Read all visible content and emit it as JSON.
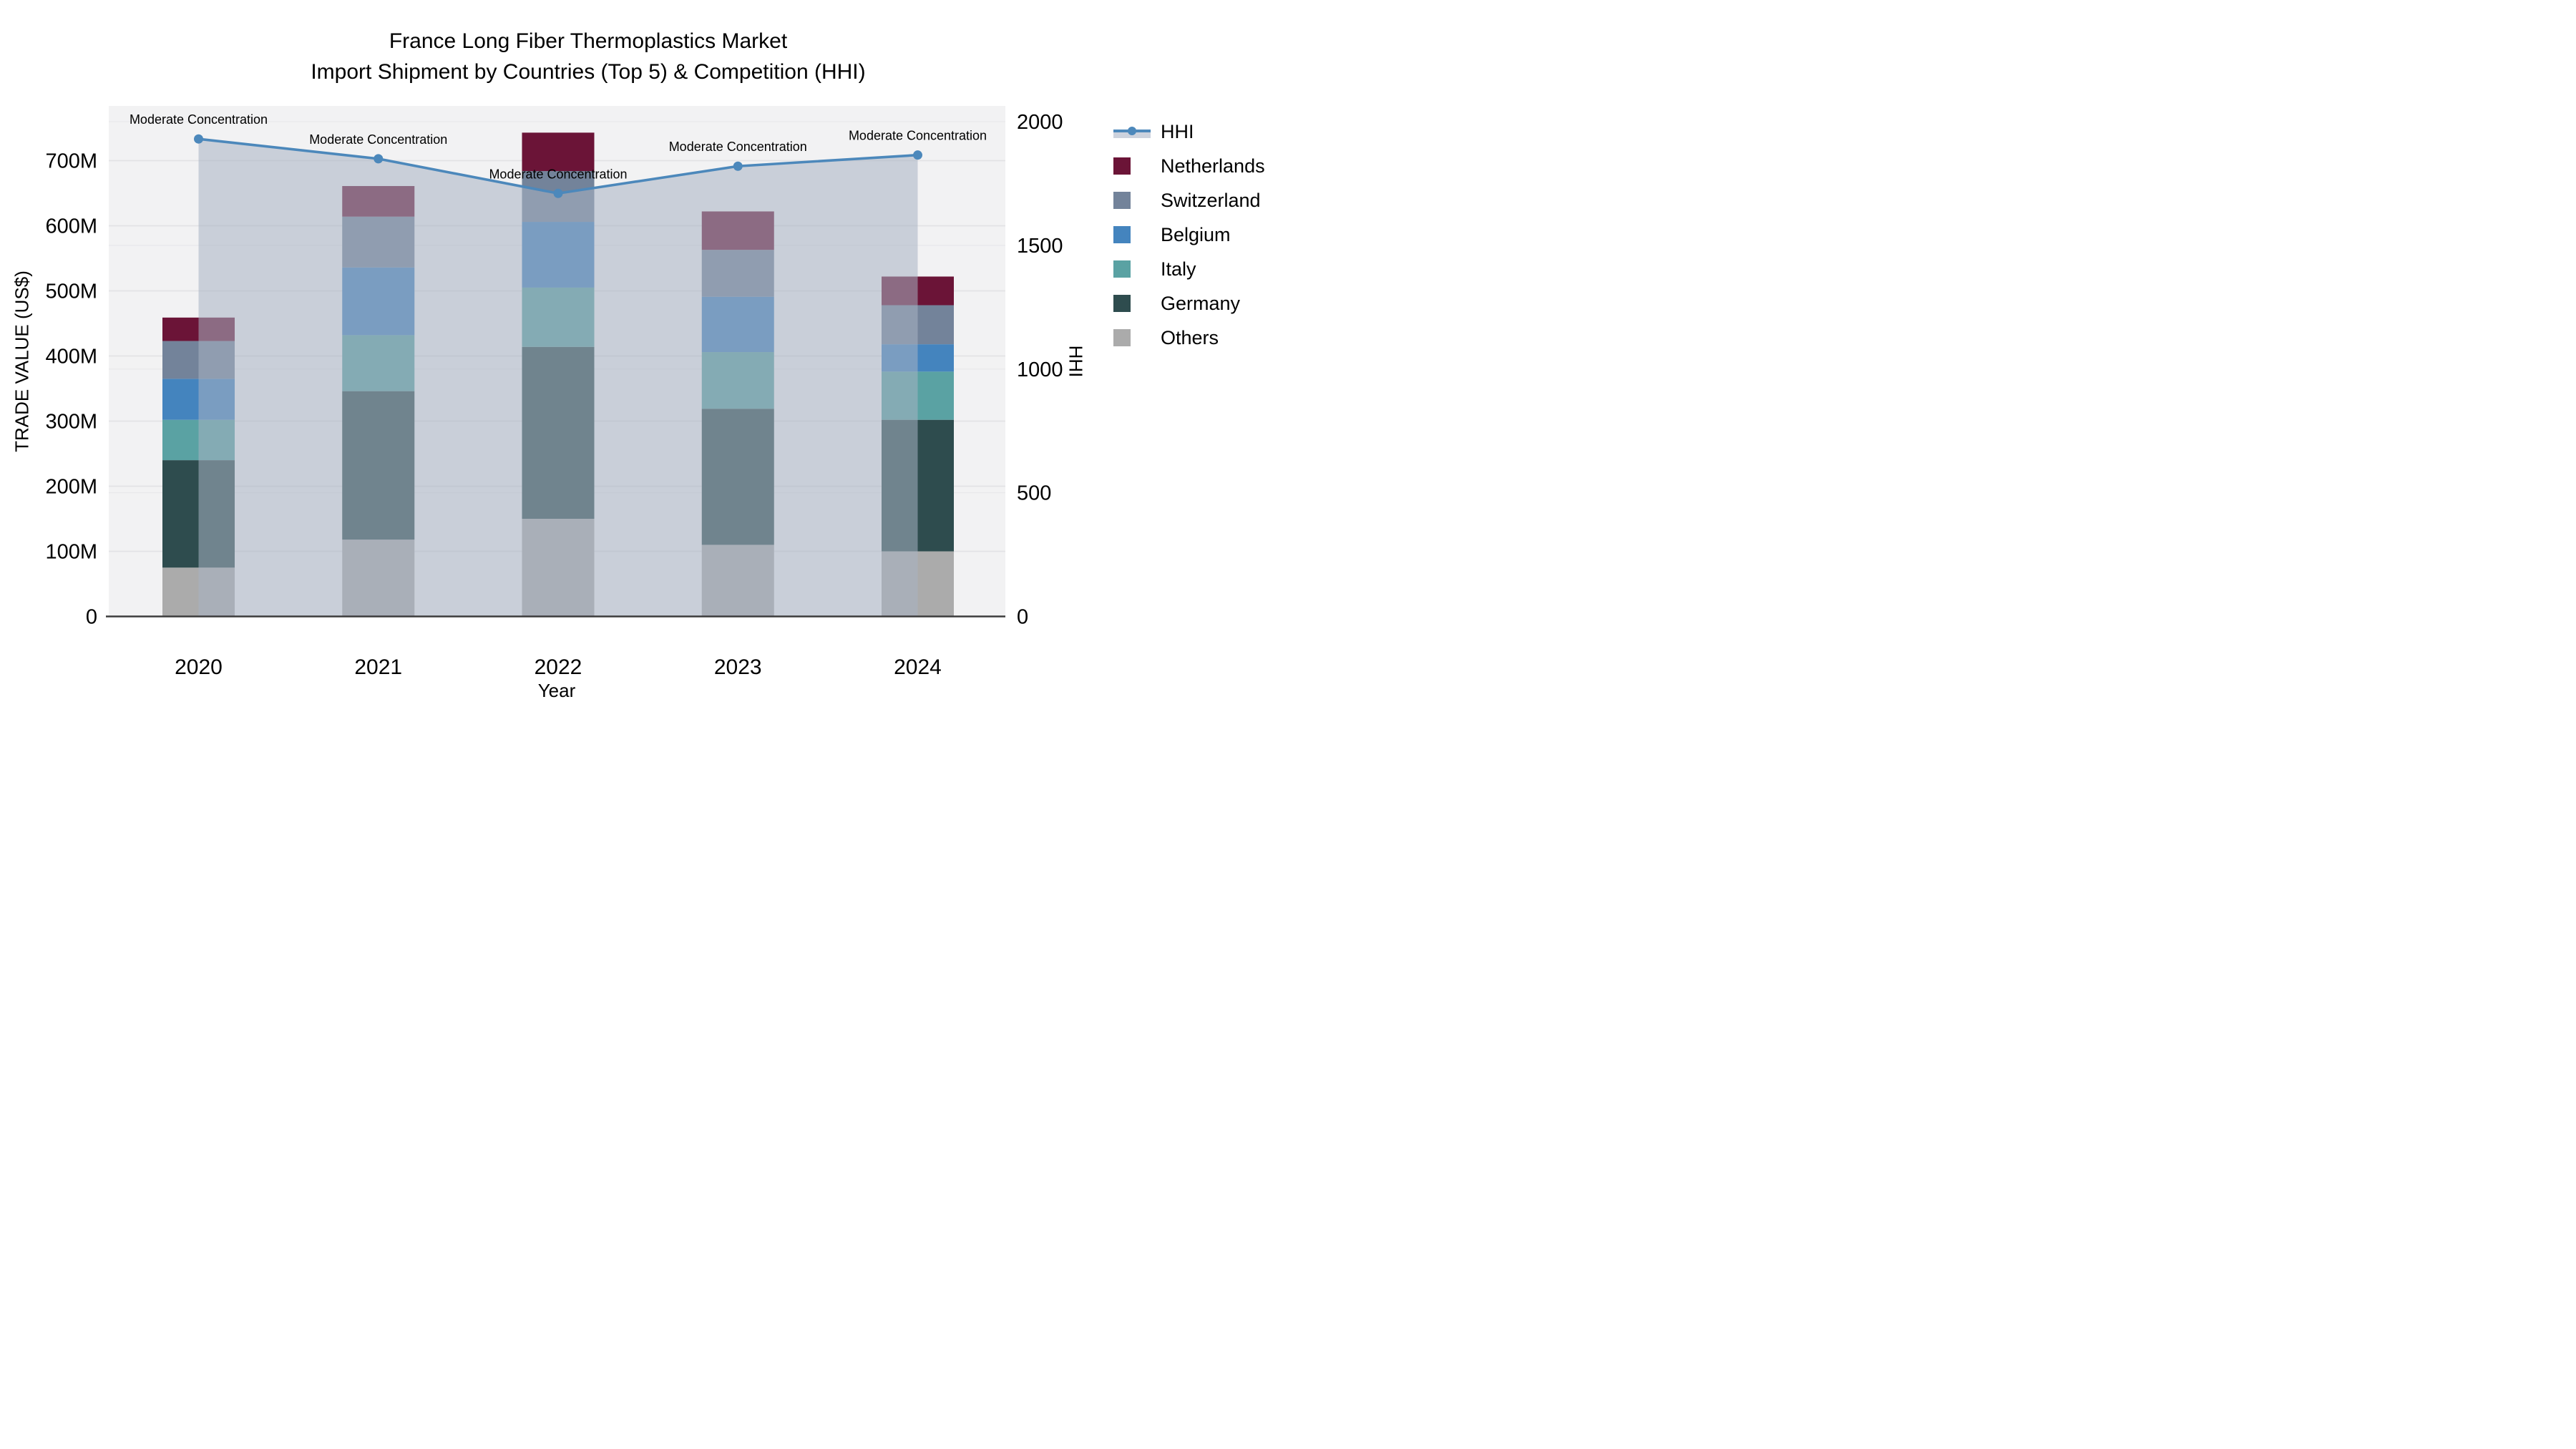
{
  "title": {
    "line1": "France Long Fiber Thermoplastics Market",
    "line2": "Import Shipment by Countries (Top 5) & Competition (HHI)"
  },
  "axes": {
    "x_label": "Year",
    "y_left_label": "TRADE VALUE (US$)",
    "y_right_label": "HHI",
    "y_left_ticks": [
      {
        "value": 0,
        "label": "0"
      },
      {
        "value": 100,
        "label": "100M"
      },
      {
        "value": 200,
        "label": "200M"
      },
      {
        "value": 300,
        "label": "300M"
      },
      {
        "value": 400,
        "label": "400M"
      },
      {
        "value": 500,
        "label": "500M"
      },
      {
        "value": 600,
        "label": "600M"
      },
      {
        "value": 700,
        "label": "700M"
      }
    ],
    "y_right_ticks": [
      {
        "value": 0,
        "label": "0"
      },
      {
        "value": 500,
        "label": "500"
      },
      {
        "value": 1000,
        "label": "1000"
      },
      {
        "value": 1500,
        "label": "1500"
      },
      {
        "value": 2000,
        "label": "2000"
      }
    ],
    "y_left_range_M": [
      0,
      784
    ],
    "y_right_range": [
      0,
      2000
    ],
    "grid": true
  },
  "chart_data": {
    "type": "bar",
    "subtype": "stacked-bars-with-line-overlay",
    "categories": [
      "2020",
      "2021",
      "2022",
      "2023",
      "2024"
    ],
    "stack_order_note": "series listed bottom-to-top; values in millions US$",
    "series": [
      {
        "name": "Others",
        "color": "#ababab",
        "values": [
          75,
          118,
          150,
          110,
          100
        ]
      },
      {
        "name": "Germany",
        "color": "#2e4c4e",
        "values": [
          165,
          228,
          264,
          209,
          202
        ]
      },
      {
        "name": "Italy",
        "color": "#5aa2a3",
        "values": [
          62,
          86,
          91,
          87,
          74
        ]
      },
      {
        "name": "Belgium",
        "color": "#4484be",
        "values": [
          63,
          104,
          101,
          85,
          42
        ]
      },
      {
        "name": "Switzerland",
        "color": "#73839a",
        "values": [
          58,
          78,
          78,
          72,
          60
        ]
      },
      {
        "name": "Netherlands",
        "color": "#6b1437",
        "values": [
          36,
          47,
          59,
          59,
          44
        ]
      }
    ],
    "bar_totals_M": [
      459,
      661,
      743,
      622,
      522
    ],
    "hhi": {
      "name": "HHI",
      "line_color": "#4c88bb",
      "band_color_rgba": "rgba(168,178,195,0.55)",
      "values": [
        1930,
        1850,
        1710,
        1820,
        1865
      ]
    },
    "annotations": [
      {
        "year": "2020",
        "text": "Moderate Concentration"
      },
      {
        "year": "2021",
        "text": "Moderate Concentration"
      },
      {
        "year": "2022",
        "text": "Moderate Concentration"
      },
      {
        "year": "2023",
        "text": "Moderate Concentration"
      },
      {
        "year": "2024",
        "text": "Moderate Concentration"
      }
    ],
    "title": "France Long Fiber Thermoplastics Market Import Shipment by Countries (Top 5) & Competition (HHI)",
    "xlabel": "Year",
    "ylabel_left": "TRADE VALUE (US$)",
    "ylabel_right": "HHI",
    "legend_position": "right"
  },
  "legend": {
    "items": [
      {
        "label": "HHI",
        "key": "line",
        "color": "#4c88bb",
        "band": "#ccd2dd"
      },
      {
        "label": "Netherlands",
        "key": "square",
        "color": "#6b1437"
      },
      {
        "label": "Switzerland",
        "key": "square",
        "color": "#73839a"
      },
      {
        "label": "Belgium",
        "key": "square",
        "color": "#4484be"
      },
      {
        "label": "Italy",
        "key": "square",
        "color": "#5aa2a3"
      },
      {
        "label": "Germany",
        "key": "square",
        "color": "#2e4c4e"
      },
      {
        "label": "Others",
        "key": "square",
        "color": "#ababab"
      }
    ]
  },
  "style": {
    "plot_bg": "#f2f2f3",
    "grid_color": "#e3e3e5",
    "grid_color_right": "#e8e8eb",
    "spine_color": "#3c3c3c",
    "text_color": "#000000"
  }
}
